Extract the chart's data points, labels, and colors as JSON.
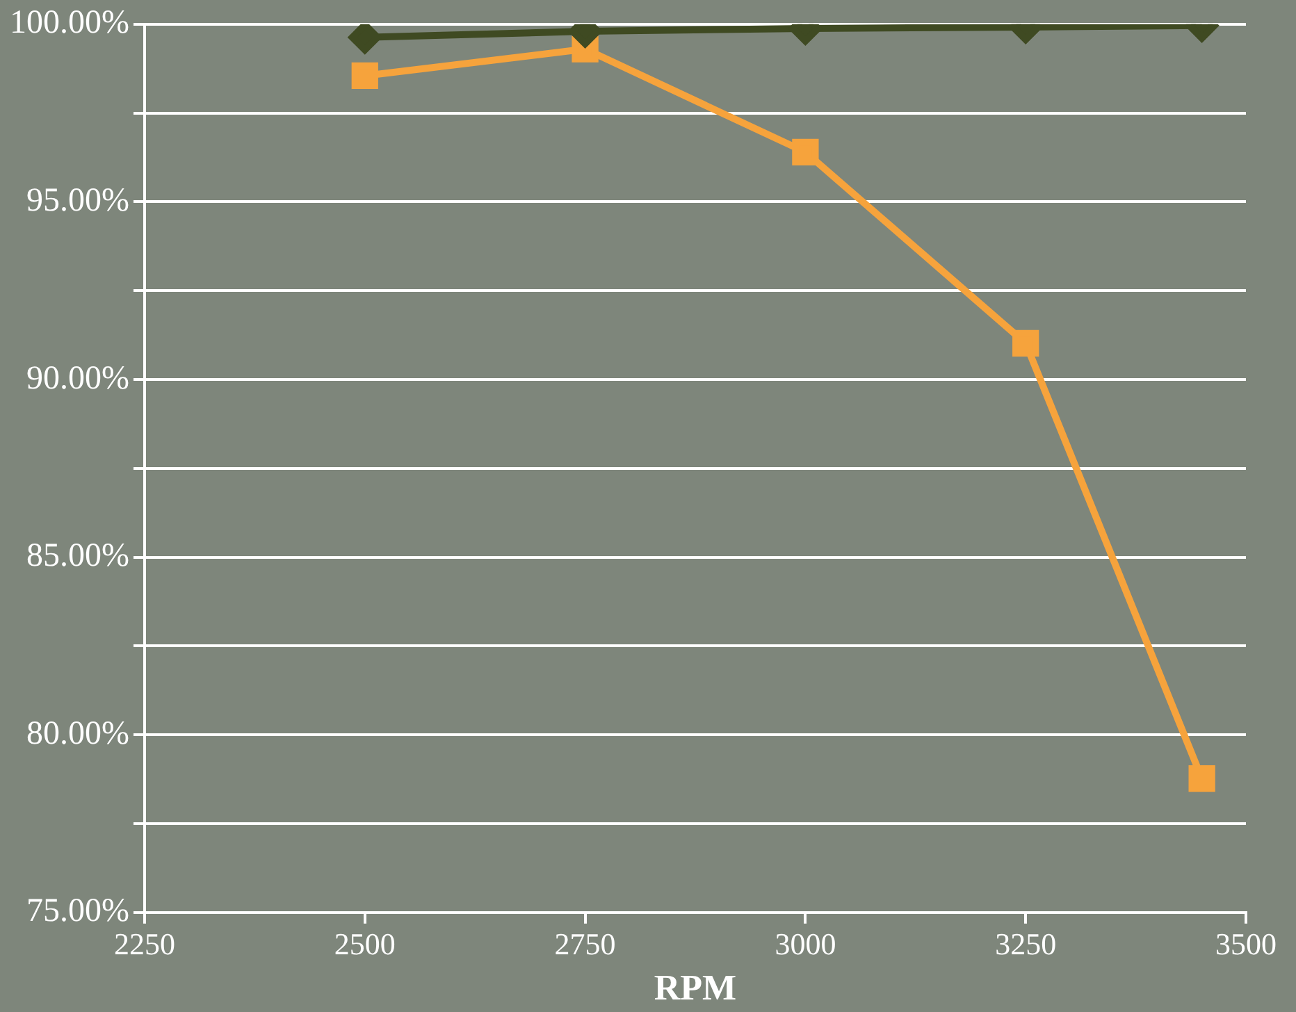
{
  "chart_data": {
    "type": "line",
    "xlabel": "RPM",
    "x": [
      2500,
      2750,
      3000,
      3250,
      3450
    ],
    "series": [
      {
        "color": "#3f4a22",
        "marker": "diamond",
        "values": [
          99.63,
          99.8,
          99.88,
          99.92,
          99.96
        ]
      },
      {
        "color": "#f6a33c",
        "marker": "square",
        "values": [
          98.55,
          99.3,
          96.4,
          91.02,
          78.77
        ]
      }
    ],
    "xlim": [
      2250,
      3500
    ],
    "xticks": [
      2250,
      2500,
      2750,
      3000,
      3250,
      3500
    ],
    "ylim": [
      75,
      100
    ],
    "yticks": [
      {
        "value": 75,
        "label": "75.00%"
      },
      {
        "value": 77.5,
        "label": null
      },
      {
        "value": 80,
        "label": "80.00%"
      },
      {
        "value": 82.5,
        "label": null
      },
      {
        "value": 85,
        "label": "85.00%"
      },
      {
        "value": 87.5,
        "label": null
      },
      {
        "value": 90,
        "label": "90.00%"
      },
      {
        "value": 92.5,
        "label": null
      },
      {
        "value": 95,
        "label": "95.00%"
      },
      {
        "value": 97.5,
        "label": null
      },
      {
        "value": 100,
        "label": "100.00%"
      }
    ],
    "grid": "y",
    "legend": false,
    "line_style": "solid"
  }
}
